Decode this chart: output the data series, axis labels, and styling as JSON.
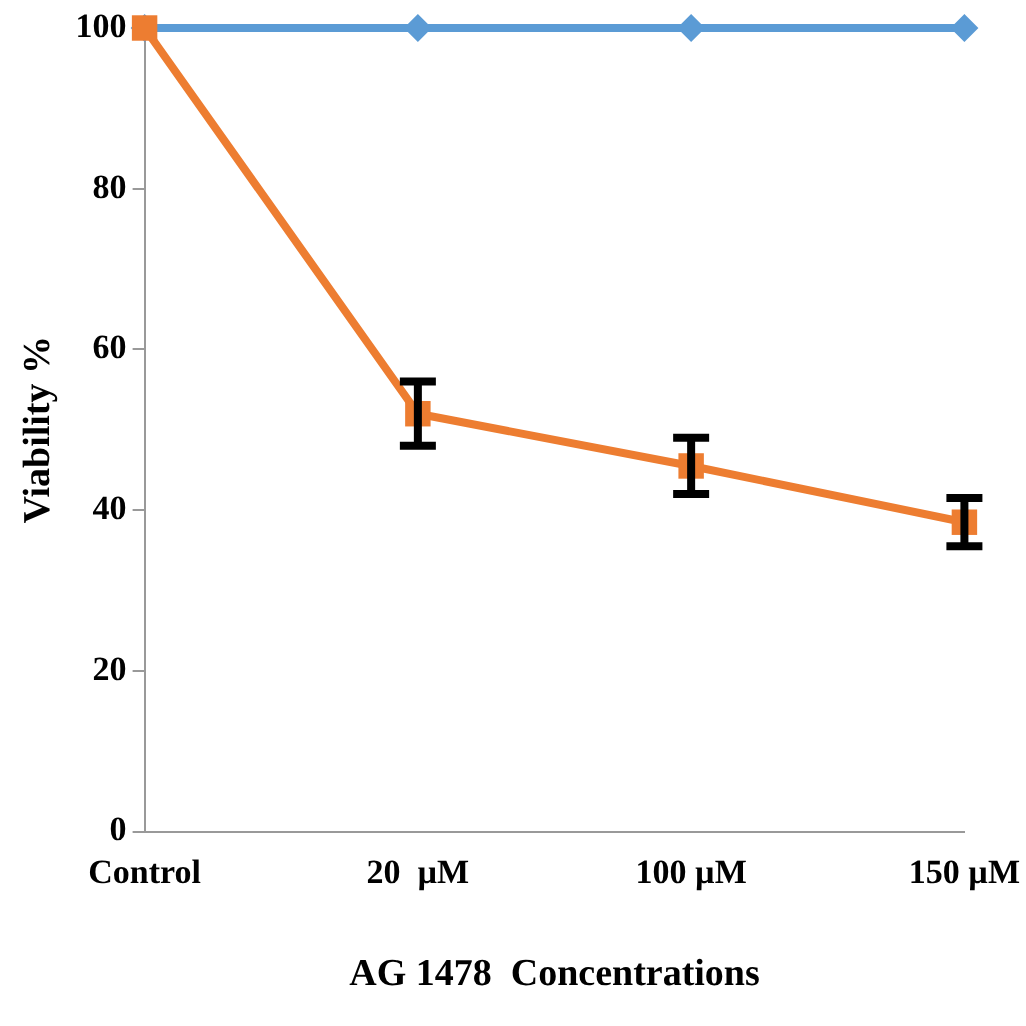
{
  "chart_data": {
    "type": "line",
    "xlabel": "AG 1478  Concentrations",
    "ylabel": "Viability %",
    "categories": [
      "Control",
      "20  µM",
      "100 µM",
      "150 µM"
    ],
    "series": [
      {
        "color": "#5b9bd5",
        "marker": "diamond",
        "values": [
          100,
          100,
          100,
          100
        ]
      },
      {
        "color": "#ed7d31",
        "marker": "square",
        "values": [
          100,
          52,
          45.5,
          38.5
        ],
        "errors": [
          null,
          4,
          3.5,
          3
        ]
      }
    ],
    "ylim": [
      0,
      100
    ],
    "yticks": [
      0,
      20,
      40,
      60,
      80,
      100
    ],
    "grid": false,
    "legend": false,
    "line_style": "solid"
  }
}
